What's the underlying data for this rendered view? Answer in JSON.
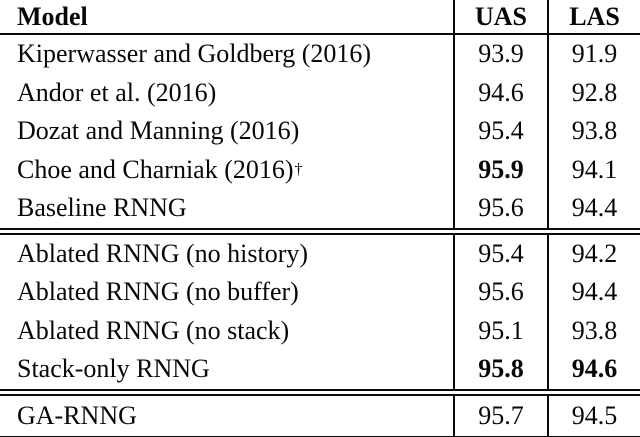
{
  "colors": {
    "background": "#ffffff",
    "text": "#080808",
    "rule": "#0a0a0a"
  },
  "header": {
    "model": "Model",
    "uas": "UAS",
    "las": "LAS"
  },
  "sections": [
    {
      "name": "prior-work-and-baseline",
      "rows": [
        {
          "model": "Kiperwasser and Goldberg (2016)",
          "uas": "93.9",
          "las": "91.9"
        },
        {
          "model": "Andor et al. (2016)",
          "uas": "94.6",
          "las": "92.8"
        },
        {
          "model": "Dozat and Manning (2016)",
          "uas": "95.4",
          "las": "93.8"
        },
        {
          "model": "Choe and Charniak (2016)",
          "model_superscript": "†",
          "uas": "95.9",
          "las": "94.1"
        },
        {
          "model": "Baseline RNNG",
          "uas": "95.6",
          "las": "94.4"
        }
      ]
    },
    {
      "name": "ablations",
      "rows": [
        {
          "model": "Ablated RNNG (no history)",
          "uas": "95.4",
          "las": "94.2"
        },
        {
          "model": "Ablated RNNG (no buffer)",
          "uas": "95.6",
          "las": "94.4"
        },
        {
          "model": "Ablated RNNG (no stack)",
          "uas": "95.1",
          "las": "93.8"
        },
        {
          "model": "Stack-only RNNG",
          "uas": "95.8",
          "las": "94.6"
        }
      ]
    },
    {
      "name": "ga-rnng",
      "rows": [
        {
          "model": "GA-RNNG",
          "uas": "95.7",
          "las": "94.5"
        }
      ]
    }
  ]
}
